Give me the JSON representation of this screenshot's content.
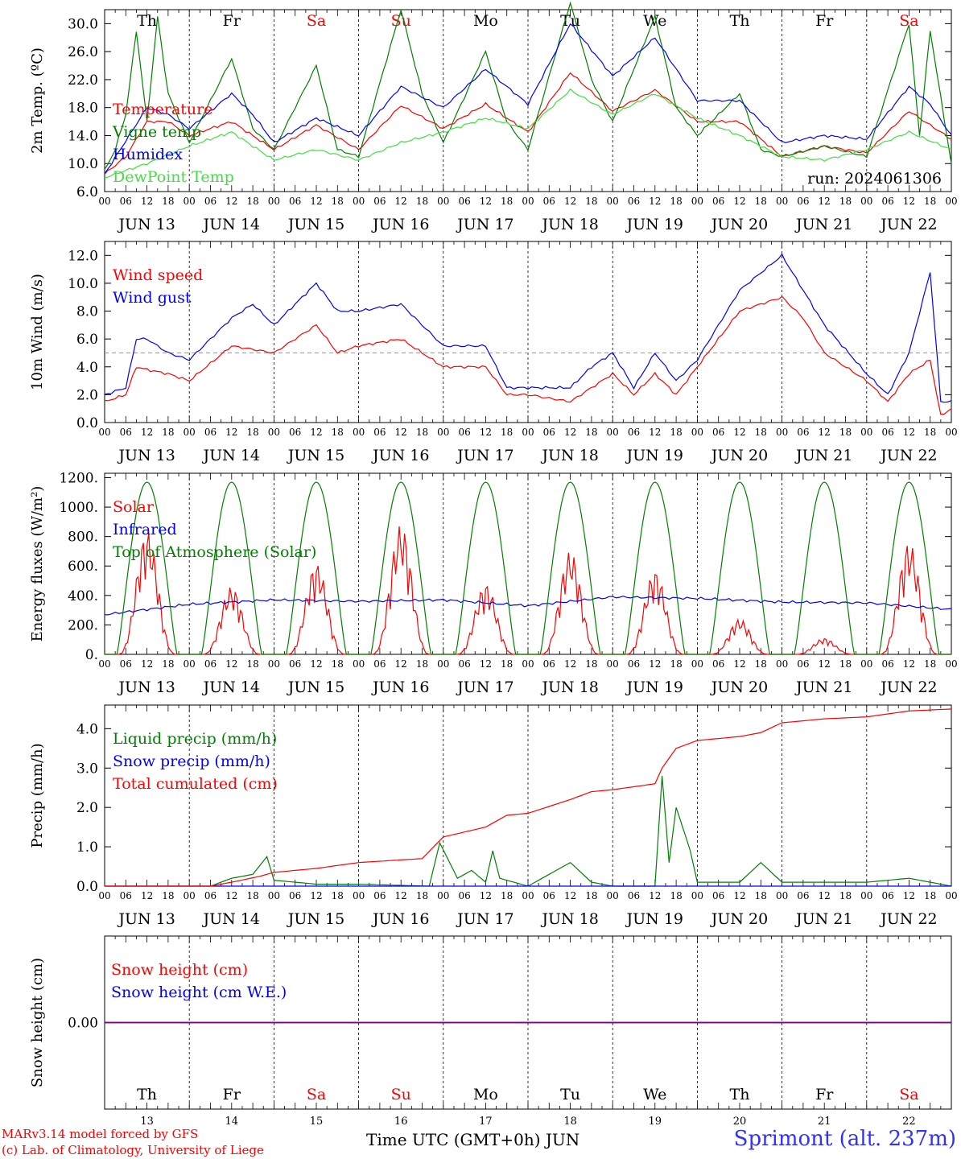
{
  "run_label": "run: 2024061306",
  "footer": {
    "model": "MARv3.14 model forced by GFS",
    "copyright": "(c) Lab. of Climatology, University of Liege",
    "time_axis": "Time UTC (GMT+0h) JUN",
    "station": "Sprimont (alt. 237m)"
  },
  "time_axis": {
    "hour_ticks": [
      "00",
      "06",
      "12",
      "18"
    ],
    "days": [
      "JUN 13",
      "JUN 14",
      "JUN 15",
      "JUN 16",
      "JUN 17",
      "JUN 18",
      "JUN 19",
      "JUN 20",
      "JUN 21",
      "JUN 22"
    ],
    "weekdays": [
      {
        "label": "Th",
        "color": "#000000"
      },
      {
        "label": "Fr",
        "color": "#000000"
      },
      {
        "label": "Sa",
        "color": "#ff0000"
      },
      {
        "label": "Su",
        "color": "#ff0000"
      },
      {
        "label": "Mo",
        "color": "#000000"
      },
      {
        "label": "Tu",
        "color": "#000000"
      },
      {
        "label": "We",
        "color": "#000000"
      },
      {
        "label": "Th",
        "color": "#000000"
      },
      {
        "label": "Fr",
        "color": "#000000"
      },
      {
        "label": "Sa",
        "color": "#ff0000"
      }
    ],
    "day_numbers": [
      "13",
      "14",
      "15",
      "16",
      "17",
      "18",
      "19",
      "20",
      "21",
      "22"
    ]
  },
  "chart_data": [
    {
      "type": "line",
      "ylabel": "2m Temp. (ºC)",
      "ylim": [
        6,
        32
      ],
      "yticks": [
        "6.0",
        "10.0",
        "14.0",
        "18.0",
        "22.0",
        "26.0",
        "30.0"
      ],
      "x_unit": "hours since 2024-06-13 00 UTC",
      "series": [
        {
          "name": "Temperature",
          "color": "#ff0000",
          "x": [
            0,
            6,
            12,
            18,
            24,
            36,
            48,
            60,
            72,
            84,
            96,
            108,
            120,
            132,
            144,
            156,
            168,
            180,
            192,
            204,
            216,
            228,
            240
          ],
          "values": [
            8.5,
            11,
            16,
            16,
            14,
            16,
            12,
            15.5,
            12,
            18.3,
            15,
            18.5,
            14.5,
            23,
            17.5,
            20.5,
            16,
            16,
            11,
            12.5,
            11.5,
            17.5,
            13.5
          ]
        },
        {
          "name": "Vigne temp",
          "color": "#008000",
          "x": [
            0,
            3,
            6,
            9,
            12,
            15,
            18,
            24,
            36,
            42,
            48,
            60,
            66,
            72,
            84,
            90,
            96,
            108,
            114,
            120,
            132,
            138,
            144,
            156,
            162,
            168,
            180,
            186,
            192,
            204,
            216,
            228,
            231,
            234,
            240
          ],
          "values": [
            9,
            12,
            17,
            29,
            16,
            31,
            20,
            13,
            25,
            15,
            12,
            24,
            12,
            11,
            32,
            20,
            13,
            26,
            16,
            12,
            33,
            22,
            16,
            31,
            18,
            14,
            20,
            12,
            11,
            12.5,
            11,
            30,
            14,
            29,
            10
          ]
        },
        {
          "name": "Humidex",
          "color": "#0000ff",
          "x": [
            0,
            12,
            18,
            24,
            36,
            42,
            48,
            60,
            72,
            84,
            96,
            108,
            120,
            132,
            144,
            156,
            168,
            180,
            192,
            204,
            216,
            228,
            234,
            240
          ],
          "values": [
            8.5,
            18,
            17,
            15,
            20,
            17,
            13,
            16.5,
            14,
            21,
            18,
            23.5,
            18.5,
            30,
            22.5,
            28,
            19,
            19,
            13,
            14,
            13.5,
            21,
            18.5,
            14
          ]
        },
        {
          "name": "DewPoint Temp",
          "color": "#40e040",
          "x": [
            0,
            12,
            24,
            36,
            48,
            60,
            72,
            84,
            96,
            108,
            120,
            132,
            144,
            156,
            168,
            180,
            192,
            204,
            216,
            228,
            240
          ],
          "values": [
            8,
            10,
            12.5,
            14.5,
            10.5,
            12,
            10.5,
            13,
            14.5,
            16.5,
            15,
            20.5,
            17,
            20,
            16.5,
            14,
            11,
            10.5,
            12,
            14.5,
            12
          ]
        }
      ]
    },
    {
      "type": "line",
      "ylabel": "10m Wind (m/s)",
      "ylim": [
        0,
        13
      ],
      "yticks": [
        "0.0",
        "2.0",
        "4.0",
        "6.0",
        "8.0",
        "10.0",
        "12.0"
      ],
      "reference_line": 5,
      "x_unit": "hours since 2024-06-13 00 UTC",
      "series": [
        {
          "name": "Wind speed",
          "color": "#ff0000",
          "x": [
            0,
            6,
            9,
            12,
            18,
            24,
            36,
            48,
            60,
            66,
            72,
            84,
            90,
            96,
            108,
            114,
            120,
            132,
            138,
            144,
            150,
            156,
            162,
            168,
            180,
            192,
            198,
            204,
            216,
            222,
            228,
            234,
            237,
            240
          ],
          "values": [
            1.5,
            2,
            4,
            3.8,
            3.5,
            3,
            5.5,
            5,
            7,
            5,
            5.5,
            6,
            5,
            4,
            4,
            2,
            2,
            1.5,
            2.5,
            3.5,
            2,
            3.5,
            2,
            4,
            8,
            9,
            7.5,
            5,
            3,
            1.5,
            3.5,
            4.5,
            0.5,
            1
          ]
        },
        {
          "name": "Wind gust",
          "color": "#0000ff",
          "x": [
            0,
            6,
            9,
            12,
            18,
            24,
            36,
            42,
            48,
            60,
            66,
            72,
            84,
            90,
            96,
            108,
            114,
            120,
            132,
            138,
            144,
            150,
            156,
            162,
            168,
            180,
            192,
            198,
            204,
            216,
            222,
            228,
            234,
            237,
            240
          ],
          "values": [
            2,
            2.5,
            6,
            6,
            5,
            4.5,
            7.5,
            8.5,
            7,
            10,
            8,
            8,
            8.5,
            7,
            5.5,
            5.5,
            2.5,
            2.5,
            2.5,
            4,
            5,
            2.5,
            5,
            3,
            4.5,
            9.5,
            12,
            9.5,
            7,
            3.5,
            2,
            5,
            10.8,
            1.5,
            1.5
          ]
        }
      ]
    },
    {
      "type": "line",
      "ylabel": "Energy fluxes (W/m²)",
      "ylim": [
        0,
        1230
      ],
      "yticks": [
        "0.",
        "200.",
        "400.",
        "600.",
        "800.",
        "1000.",
        "1200."
      ],
      "x_unit": "hours since 2024-06-13 00 UTC",
      "toa_peak": 1170,
      "series": [
        {
          "name": "Solar",
          "color": "#ff0000",
          "daily_peaks": [
            840,
            460,
            620,
            880,
            480,
            700,
            570,
            240,
            110,
            760
          ]
        },
        {
          "name": "Infrared",
          "color": "#0000ff",
          "x": [
            0,
            24,
            48,
            72,
            96,
            120,
            144,
            168,
            192,
            216,
            240
          ],
          "values": [
            270,
            340,
            370,
            360,
            370,
            330,
            390,
            380,
            355,
            350,
            305
          ]
        },
        {
          "name": "Top of Atmosphere (Solar)",
          "color": "#008000",
          "daily_peaks": [
            1170,
            1170,
            1170,
            1170,
            1170,
            1170,
            1170,
            1170,
            1170,
            1170
          ]
        }
      ]
    },
    {
      "type": "line",
      "ylabel": "Precip (mm/h)",
      "ylim": [
        0,
        4.6
      ],
      "yticks": [
        "0.0",
        "1.0",
        "2.0",
        "3.0",
        "4.0"
      ],
      "x_unit": "hours since 2024-06-13 00 UTC",
      "series": [
        {
          "name": "Liquid precip (mm/h)",
          "color": "#008000",
          "x": [
            0,
            30,
            36,
            42,
            46,
            48,
            60,
            72,
            92,
            95,
            100,
            104,
            108,
            110,
            112,
            120,
            132,
            138,
            144,
            156,
            158,
            160,
            162,
            166,
            168,
            180,
            186,
            192,
            204,
            216,
            228,
            240
          ],
          "values": [
            0,
            0,
            0.2,
            0.3,
            0.75,
            0.15,
            0.05,
            0.05,
            0,
            1.1,
            0.2,
            0.4,
            0.1,
            0.9,
            0.2,
            0,
            0.6,
            0.1,
            0,
            0,
            2.8,
            0.6,
            2,
            0.9,
            0.1,
            0.1,
            0.6,
            0.1,
            0.1,
            0.1,
            0.2,
            0
          ]
        },
        {
          "name": "Snow precip (mm/h)",
          "color": "#0000ff",
          "x": [
            0,
            240
          ],
          "values": [
            0,
            0
          ]
        },
        {
          "name": "Total cumulated (cm)",
          "color": "#ff0000",
          "x": [
            0,
            30,
            36,
            44,
            48,
            60,
            72,
            90,
            96,
            108,
            114,
            120,
            132,
            138,
            144,
            156,
            158,
            162,
            168,
            180,
            186,
            192,
            204,
            216,
            228,
            240
          ],
          "values": [
            0,
            0,
            0.1,
            0.25,
            0.35,
            0.45,
            0.6,
            0.7,
            1.25,
            1.5,
            1.8,
            1.85,
            2.2,
            2.4,
            2.45,
            2.6,
            3,
            3.5,
            3.7,
            3.8,
            3.9,
            4.15,
            4.25,
            4.3,
            4.45,
            4.5
          ]
        }
      ]
    },
    {
      "type": "line",
      "ylabel": "Snow height (cm)",
      "ylim": [
        -1,
        1
      ],
      "yticks": [
        "0.00"
      ],
      "series": [
        {
          "name": "Snow height (cm)",
          "color": "#ff0000",
          "x": [
            0,
            240
          ],
          "values": [
            0,
            0
          ]
        },
        {
          "name": "Snow height (cm W.E.)",
          "color": "#0000ff",
          "x": [
            0,
            240
          ],
          "values": [
            0,
            0
          ]
        }
      ]
    }
  ]
}
